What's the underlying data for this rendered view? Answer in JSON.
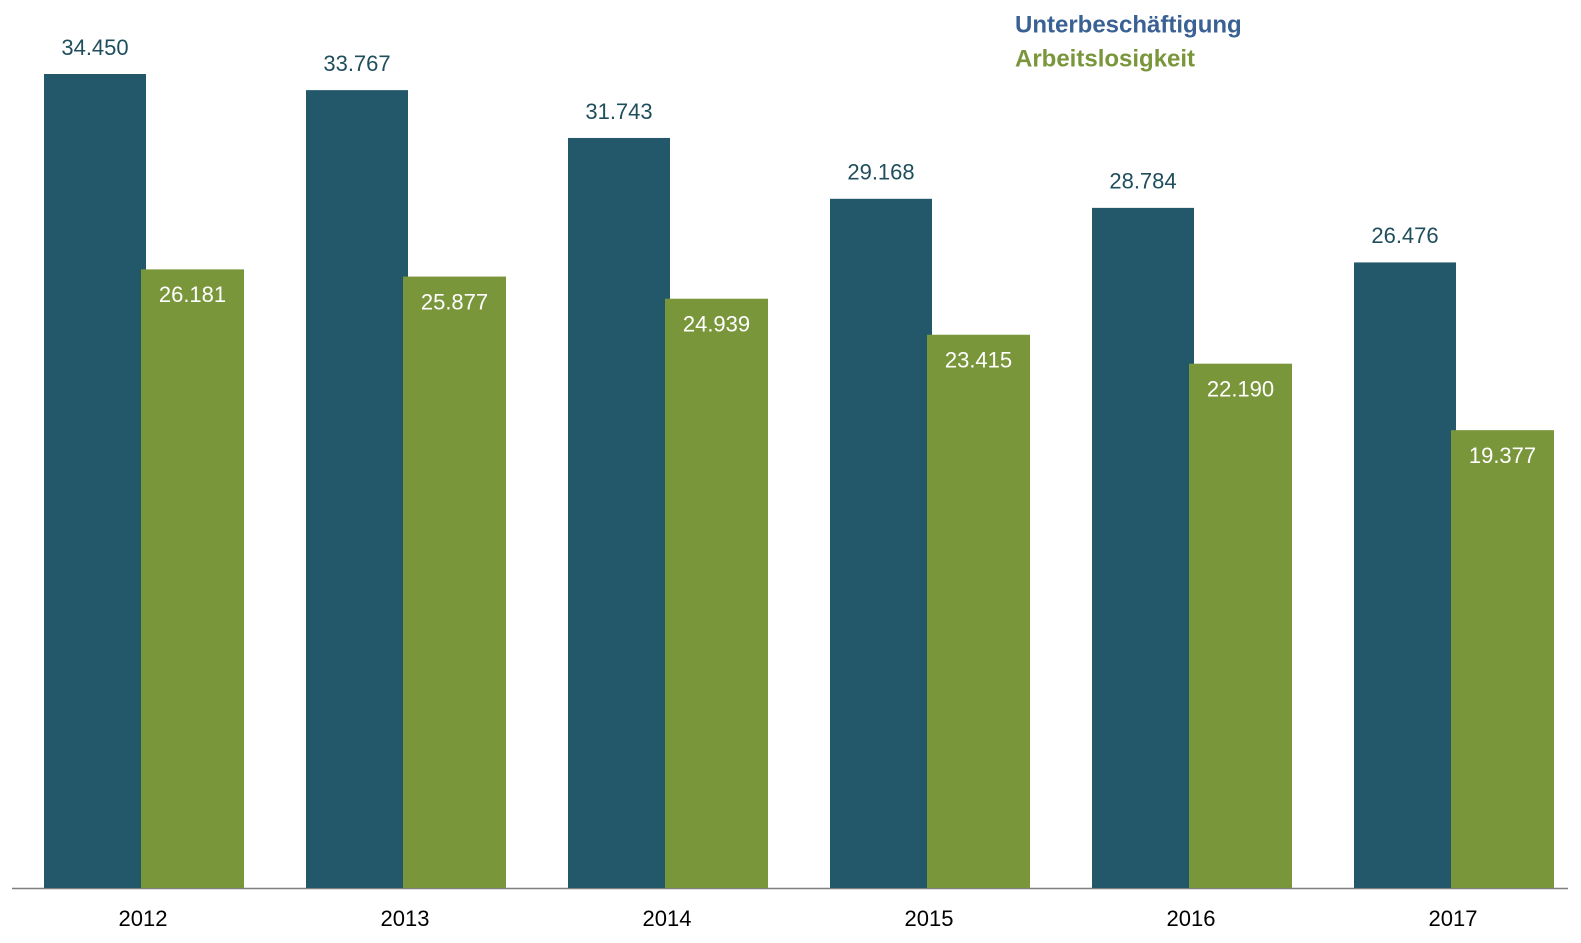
{
  "chart_data": {
    "type": "bar",
    "categories": [
      "2012",
      "2013",
      "2014",
      "2015",
      "2016",
      "2017"
    ],
    "series": [
      {
        "name": "Unterbeschäftigung",
        "color": "#225869",
        "values": [
          34450,
          33767,
          31743,
          29168,
          28784,
          26476
        ],
        "value_labels": [
          "34.450",
          "33.767",
          "31.743",
          "29.168",
          "28.784",
          "26.476"
        ]
      },
      {
        "name": "Arbeitslosigkeit",
        "color": "#7a963b",
        "values": [
          26181,
          25877,
          24939,
          23415,
          22190,
          19377
        ],
        "value_labels": [
          "26.181",
          "25.877",
          "24.939",
          "23.415",
          "22.190",
          "19.377"
        ]
      }
    ],
    "legend": "top-right"
  }
}
